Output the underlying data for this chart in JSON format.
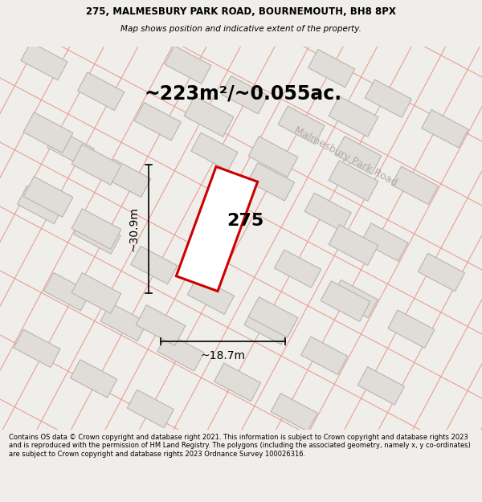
{
  "title_line1": "275, MALMESBURY PARK ROAD, BOURNEMOUTH, BH8 8PX",
  "title_line2": "Map shows position and indicative extent of the property.",
  "area_text": "~223m²/~0.055ac.",
  "plot_number": "275",
  "width_label": "~18.7m",
  "height_label": "~30.9m",
  "road_label": "Malmesbury Park Road",
  "footer_text": "Contains OS data © Crown copyright and database right 2021. This information is subject to Crown copyright and database rights 2023 and is reproduced with the permission of HM Land Registry. The polygons (including the associated geometry, namely x, y co-ordinates) are subject to Crown copyright and database rights 2023 Ordnance Survey 100026316.",
  "map_bg": "#f0eeeb",
  "building_fill": "#e0ddd8",
  "building_edge": "#b8b4ae",
  "road_line_color": "#e8a090",
  "plot_color": "#cc0000",
  "road_label_color": "#b0a8a0",
  "header_bg": "#f0eeeb",
  "footer_bg": "#f0eeeb"
}
